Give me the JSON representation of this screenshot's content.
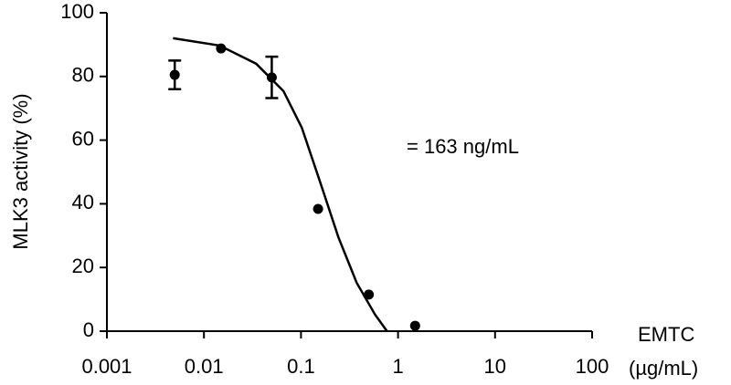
{
  "chart_data": {
    "type": "scatter",
    "y_label": "MLK3 activity (%)",
    "x_label": [
      "EMTC",
      "(µg/mL)"
    ],
    "annotation": "= 163 ng/mL",
    "x": [
      0.005,
      0.015,
      0.05,
      0.15,
      0.5,
      1.5
    ],
    "values": [
      80.5,
      88.8,
      79.7,
      38.4,
      11.5,
      1.7
    ],
    "errors": [
      4.5,
      null,
      6.5,
      null,
      null,
      null
    ],
    "color": "#000000",
    "fit": {
      "x": [
        0.0048,
        0.0145,
        0.0345,
        0.066,
        0.102,
        0.158,
        0.243,
        0.375,
        0.58,
        0.77
      ],
      "values": [
        92,
        89.7,
        84,
        75.4,
        63.9,
        46.7,
        29.5,
        15.2,
        5.2,
        0
      ]
    },
    "x_log": true,
    "xlim": [
      0.001,
      100
    ],
    "ylim": [
      0,
      100
    ],
    "xticks": [
      0.001,
      0.01,
      0.1,
      1,
      10,
      100
    ],
    "yticks": [
      0,
      20,
      40,
      60,
      80,
      100
    ]
  }
}
